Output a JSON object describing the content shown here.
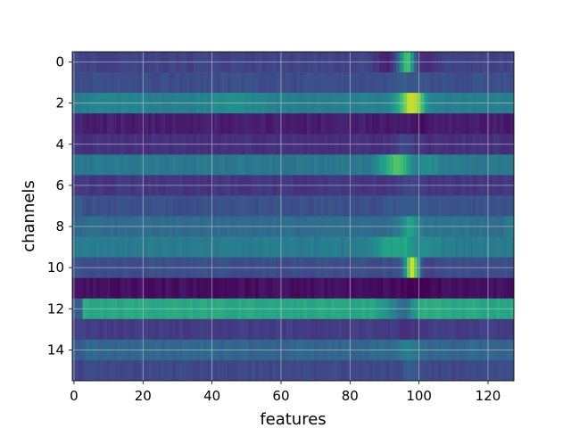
{
  "chart_data": {
    "type": "heatmap",
    "colormap": "viridis",
    "xlabel": "features",
    "ylabel": "channels",
    "xlim": [
      -0.5,
      127.5
    ],
    "ylim": [
      15.5,
      -0.5
    ],
    "x_ticks": [
      0,
      20,
      40,
      60,
      80,
      100,
      120
    ],
    "y_ticks": [
      0,
      2,
      4,
      6,
      8,
      10,
      12,
      14
    ],
    "grid": true,
    "n_rows": 16,
    "n_cols": 128,
    "row_profiles": [
      {
        "channel": 0,
        "base": 0.2,
        "left_edge": 0.22,
        "right_edge": 0.2,
        "bumps": [
          [
            96,
            2,
            0.35
          ],
          [
            97,
            1.2,
            0.25
          ],
          [
            92,
            3,
            -0.12
          ],
          [
            102,
            3,
            -0.1
          ]
        ]
      },
      {
        "channel": 1,
        "base": 0.24,
        "left_edge": 0.24,
        "right_edge": 0.24,
        "bumps": [
          [
            96,
            3,
            0.05
          ]
        ]
      },
      {
        "channel": 2,
        "base": 0.43,
        "left_edge": 0.4,
        "right_edge": 0.42,
        "bumps": [
          [
            97,
            2.5,
            0.3
          ],
          [
            99,
            2,
            0.25
          ],
          [
            45,
            6,
            0.06
          ],
          [
            10,
            6,
            0.03
          ]
        ]
      },
      {
        "channel": 3,
        "base": 0.08,
        "left_edge": 0.1,
        "right_edge": 0.08,
        "bumps": [
          [
            100,
            2,
            -0.04
          ]
        ]
      },
      {
        "channel": 4,
        "base": 0.14,
        "left_edge": 0.14,
        "right_edge": 0.14,
        "bumps": [
          [
            96,
            2,
            0.08
          ]
        ]
      },
      {
        "channel": 5,
        "base": 0.4,
        "left_edge": 0.4,
        "right_edge": 0.4,
        "bumps": [
          [
            92,
            2.5,
            0.22
          ],
          [
            95,
            2,
            0.18
          ],
          [
            103,
            3,
            0.08
          ]
        ]
      },
      {
        "channel": 6,
        "base": 0.16,
        "left_edge": 0.16,
        "right_edge": 0.16,
        "bumps": [
          [
            97,
            2,
            0.04
          ]
        ]
      },
      {
        "channel": 7,
        "base": 0.25,
        "left_edge": 0.28,
        "right_edge": 0.25,
        "bumps": [
          [
            96,
            3,
            0.04
          ]
        ]
      },
      {
        "channel": 8,
        "base": 0.35,
        "left_edge": 0.32,
        "right_edge": 0.42,
        "bumps": [
          [
            97,
            2,
            0.2
          ],
          [
            110,
            8,
            0.04
          ]
        ]
      },
      {
        "channel": 9,
        "base": 0.42,
        "left_edge": 0.4,
        "right_edge": 0.42,
        "bumps": [
          [
            91,
            3,
            0.15
          ],
          [
            96,
            2,
            0.12
          ],
          [
            103,
            3,
            0.06
          ]
        ]
      },
      {
        "channel": 10,
        "base": 0.24,
        "left_edge": 0.26,
        "right_edge": 0.24,
        "bumps": [
          [
            98,
            1.5,
            0.7
          ],
          [
            101,
            3,
            -0.06
          ]
        ]
      },
      {
        "channel": 11,
        "base": 0.04,
        "left_edge": 0.04,
        "right_edge": 0.04,
        "bumps": [
          [
            100,
            3,
            -0.05
          ]
        ]
      },
      {
        "channel": 12,
        "base": 0.6,
        "left_edge": 0.3,
        "right_edge": 0.6,
        "bumps": [
          [
            93,
            3,
            -0.12
          ],
          [
            96,
            2,
            -0.18
          ],
          [
            102,
            5,
            0.02
          ]
        ]
      },
      {
        "channel": 13,
        "base": 0.18,
        "left_edge": 0.18,
        "right_edge": 0.18,
        "bumps": [
          [
            96,
            2,
            -0.03
          ]
        ]
      },
      {
        "channel": 14,
        "base": 0.33,
        "left_edge": 0.3,
        "right_edge": 0.32,
        "bumps": [
          [
            97,
            2,
            0.12
          ]
        ]
      },
      {
        "channel": 15,
        "base": 0.22,
        "left_edge": 0.2,
        "right_edge": 0.22,
        "bumps": [
          [
            98,
            2,
            0.08
          ]
        ]
      }
    ]
  }
}
